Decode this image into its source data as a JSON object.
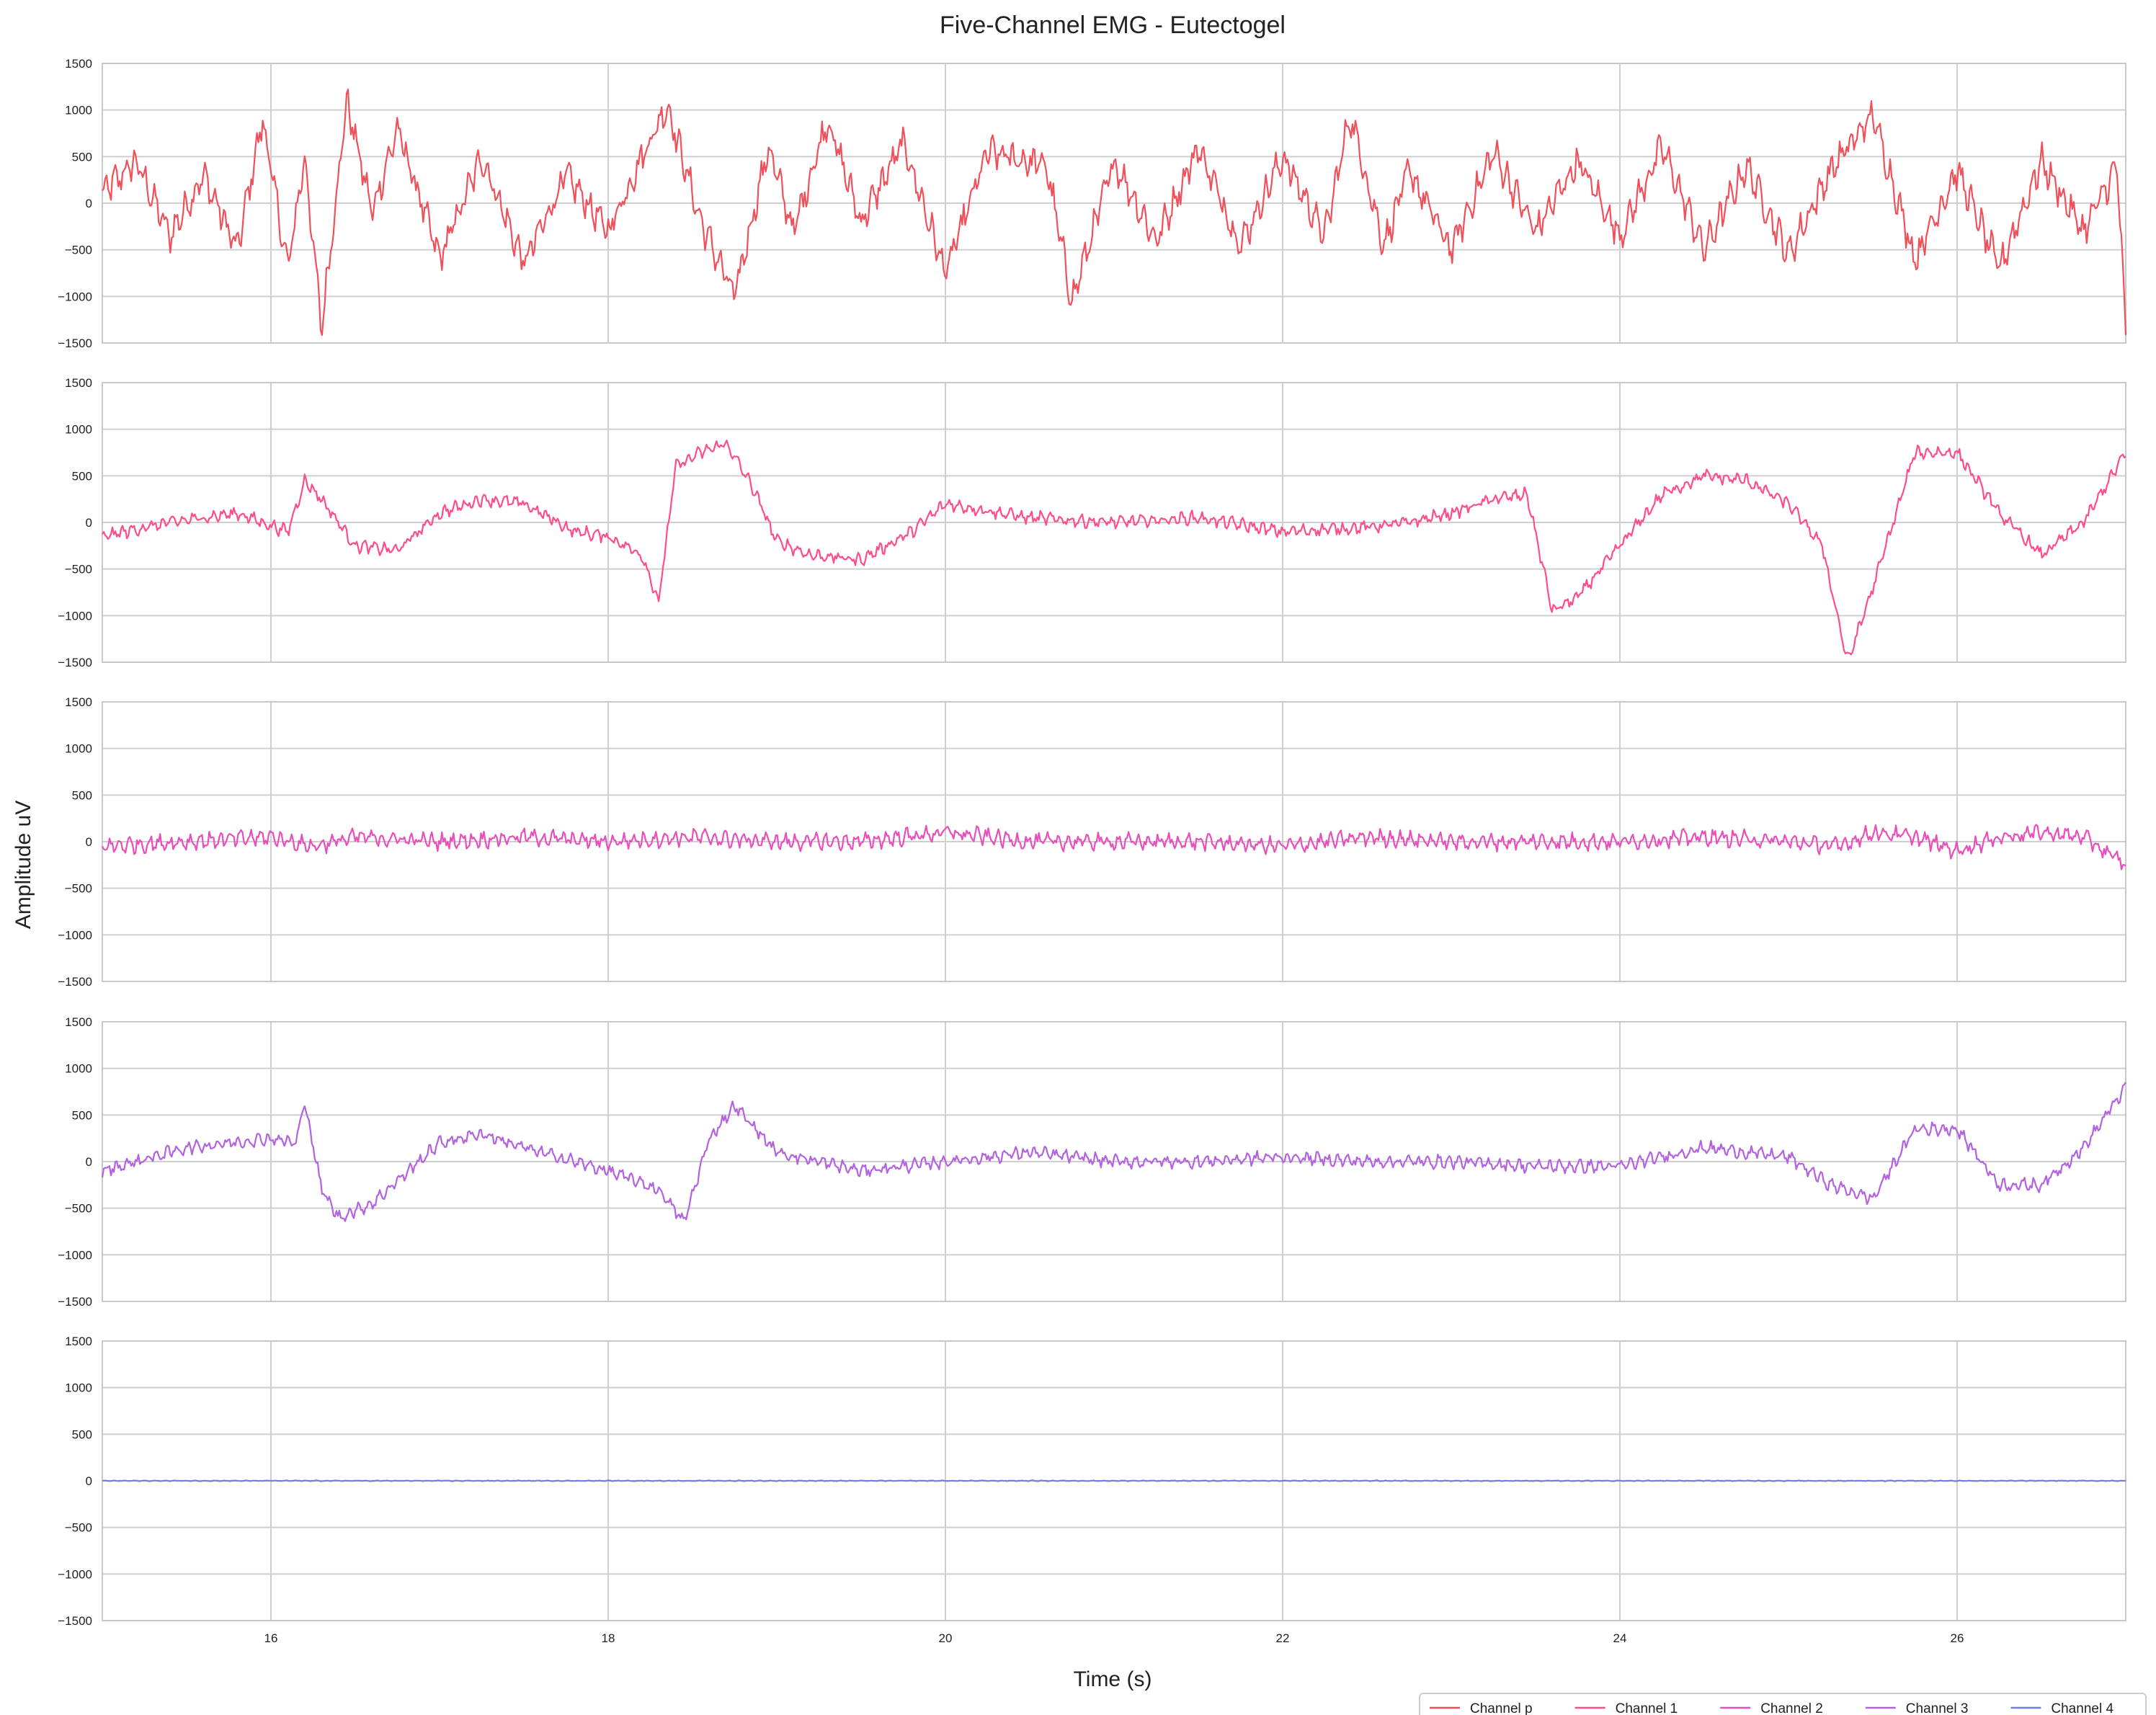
{
  "chart_data": {
    "type": "line",
    "title": "Five-Channel EMG - Eutectogel",
    "xlabel": "Time (s)",
    "ylabel": "Amplitude uV",
    "xlim": [
      15.0,
      27.0
    ],
    "xticks": [
      16,
      18,
      20,
      22,
      24,
      26
    ],
    "xtick_labels": [
      "16",
      "18",
      "20",
      "22",
      "24",
      "26"
    ],
    "ylim": [
      -1500,
      1500
    ],
    "yticks": [
      -1500,
      -1000,
      -500,
      0,
      500,
      1000,
      1500
    ],
    "ytick_labels": [
      "−1500",
      "−1000",
      "−500",
      "0",
      "500",
      "1000",
      "1500"
    ],
    "grid": true,
    "legend_position": "bottom-right",
    "series": [
      {
        "name": "Channel p",
        "color": "#f0505a",
        "x": [
          15.0,
          15.2,
          15.4,
          15.6,
          15.8,
          15.95,
          16.1,
          16.2,
          16.3,
          16.45,
          16.6,
          16.75,
          17.0,
          17.25,
          17.5,
          17.75,
          18.0,
          18.2,
          18.35,
          18.55,
          18.75,
          18.95,
          19.1,
          19.3,
          19.5,
          19.75,
          20.0,
          20.25,
          20.6,
          20.75,
          21.0,
          21.25,
          21.5,
          21.75,
          22.0,
          22.25,
          22.4,
          22.6,
          22.75,
          23.0,
          23.25,
          23.5,
          23.75,
          24.0,
          24.25,
          24.5,
          24.75,
          25.0,
          25.25,
          25.5,
          25.75,
          26.0,
          26.25,
          26.5,
          26.75,
          26.95,
          27.0
        ],
        "values": [
          100,
          450,
          -350,
          300,
          -500,
          900,
          -700,
          500,
          -1350,
          1100,
          -100,
          800,
          -600,
          500,
          -650,
          300,
          -300,
          500,
          1050,
          -200,
          -1000,
          600,
          -300,
          900,
          -200,
          650,
          -750,
          550,
          400,
          -1050,
          450,
          -400,
          600,
          -450,
          500,
          -350,
          950,
          -450,
          350,
          -500,
          550,
          -300,
          450,
          -350,
          600,
          -500,
          400,
          -550,
          350,
          950,
          -600,
          350,
          -700,
          450,
          -300,
          400,
          -1450
        ]
      },
      {
        "name": "Channel 1",
        "color": "#ff4d8a",
        "x": [
          15.0,
          15.4,
          15.8,
          16.1,
          16.2,
          16.3,
          16.5,
          16.75,
          17.0,
          17.25,
          17.5,
          17.8,
          18.0,
          18.2,
          18.3,
          18.4,
          18.55,
          18.7,
          18.85,
          19.0,
          19.2,
          19.5,
          19.8,
          20.0,
          20.5,
          21.0,
          21.5,
          22.0,
          22.5,
          22.75,
          23.0,
          23.25,
          23.45,
          23.6,
          23.75,
          24.0,
          24.25,
          24.5,
          24.75,
          25.0,
          25.2,
          25.35,
          25.5,
          25.75,
          26.0,
          26.25,
          26.5,
          26.75,
          27.0
        ],
        "values": [
          -150,
          0,
          100,
          -100,
          450,
          250,
          -250,
          -300,
          100,
          250,
          200,
          -100,
          -150,
          -350,
          -850,
          600,
          750,
          850,
          400,
          -200,
          -350,
          -400,
          -100,
          200,
          50,
          0,
          50,
          -100,
          -50,
          0,
          100,
          250,
          300,
          -950,
          -800,
          -250,
          300,
          500,
          450,
          200,
          -250,
          -1500,
          -700,
          750,
          750,
          100,
          -350,
          0,
          750
        ]
      },
      {
        "name": "Channel 2",
        "color": "#e84fba",
        "x": [
          15.0,
          15.5,
          16.0,
          16.25,
          16.5,
          17.0,
          17.5,
          18.0,
          18.5,
          19.0,
          19.5,
          20.0,
          20.5,
          21.0,
          21.5,
          22.0,
          22.5,
          23.0,
          23.5,
          24.0,
          24.5,
          25.0,
          25.3,
          25.5,
          25.75,
          26.0,
          26.25,
          26.5,
          26.75,
          27.0
        ],
        "values": [
          -50,
          0,
          50,
          -50,
          50,
          0,
          50,
          0,
          50,
          0,
          0,
          100,
          0,
          0,
          0,
          -50,
          50,
          0,
          0,
          0,
          50,
          0,
          -50,
          100,
          50,
          -100,
          50,
          100,
          50,
          -250
        ]
      },
      {
        "name": "Channel 3",
        "color": "#b362e0",
        "x": [
          15.0,
          15.5,
          16.0,
          16.15,
          16.2,
          16.3,
          16.4,
          16.6,
          17.0,
          17.25,
          17.5,
          17.8,
          18.0,
          18.3,
          18.45,
          18.6,
          18.75,
          18.9,
          19.0,
          19.5,
          20.0,
          20.5,
          21.0,
          21.5,
          22.0,
          22.5,
          23.0,
          23.5,
          24.0,
          24.5,
          25.0,
          25.25,
          25.5,
          25.75,
          26.0,
          26.25,
          26.5,
          26.75,
          27.0
        ],
        "values": [
          -100,
          150,
          250,
          200,
          650,
          -300,
          -600,
          -450,
          200,
          300,
          150,
          0,
          -100,
          -300,
          -650,
          250,
          600,
          300,
          100,
          -100,
          0,
          100,
          0,
          0,
          50,
          0,
          0,
          -50,
          -50,
          150,
          50,
          -250,
          -400,
          350,
          350,
          -250,
          -250,
          150,
          800
        ]
      },
      {
        "name": "Channel 4",
        "color": "#6f7fe6",
        "x": [
          15.0,
          27.0
        ],
        "values": [
          0,
          0
        ]
      }
    ]
  }
}
